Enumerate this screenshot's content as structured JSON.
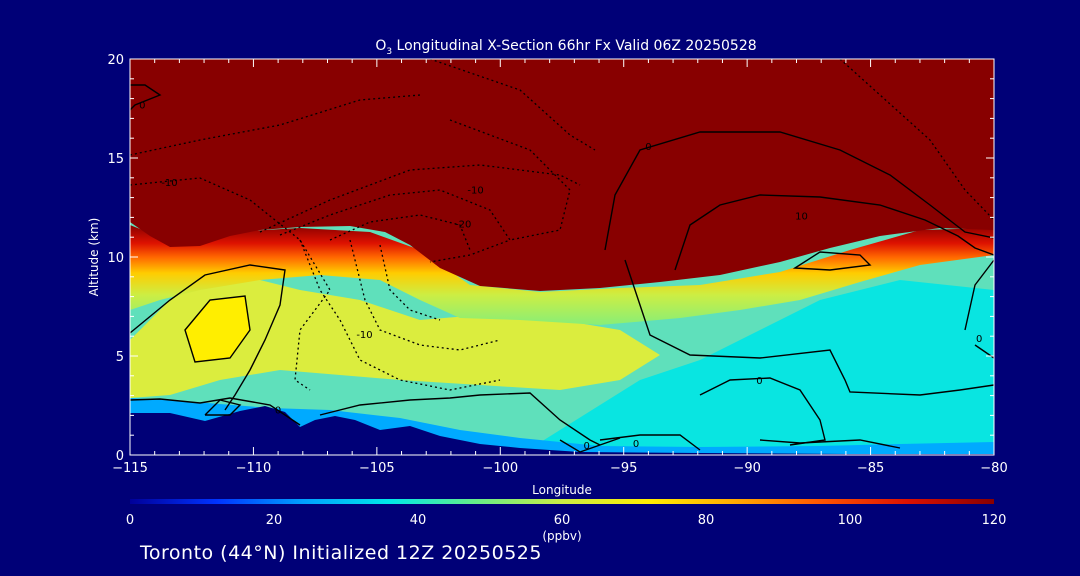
{
  "chart_data": {
    "type": "heatmap",
    "title_prefix": "O",
    "title_subscript": "3",
    "title_suffix": " Longitudinal X-Section 66hr  Fx Valid 06Z 20250528",
    "xlabel": "Longitude",
    "ylabel": "Altitude (km)",
    "xlim": [
      -115,
      -80
    ],
    "ylim": [
      0,
      20
    ],
    "x_ticks": [
      -115,
      -110,
      -105,
      -100,
      -95,
      -90,
      -85,
      -80
    ],
    "y_ticks": [
      0,
      5,
      10,
      15,
      20
    ],
    "colorbar": {
      "label": "(ppbv)",
      "range": [
        0,
        120
      ],
      "ticks": [
        0,
        20,
        40,
        60,
        80,
        100,
        120
      ],
      "colors": [
        "#000099",
        "#0033ff",
        "#00a0ff",
        "#00e8e8",
        "#66ee88",
        "#ccee44",
        "#ffee00",
        "#ffaa00",
        "#ff5500",
        "#dd1100",
        "#880000"
      ]
    },
    "contour_labels": [
      {
        "text": "0",
        "x": -109,
        "y": 2.3
      },
      {
        "text": "0",
        "x": -96.5,
        "y": 0.5
      },
      {
        "text": "0",
        "x": -94.5,
        "y": 0.6
      },
      {
        "text": "0",
        "x": -89.5,
        "y": 3.8
      },
      {
        "text": "0",
        "x": -80.6,
        "y": 5.9
      },
      {
        "text": "0",
        "x": -94,
        "y": 15.6
      },
      {
        "text": "0",
        "x": -114.5,
        "y": 17.7
      },
      {
        "text": "10",
        "x": -87.8,
        "y": 12.1
      },
      {
        "text": "-10",
        "x": -113.4,
        "y": 13.8
      },
      {
        "text": "-10",
        "x": -101,
        "y": 13.4
      },
      {
        "text": "-20",
        "x": -101.5,
        "y": 11.7
      },
      {
        "text": "-10",
        "x": -105.5,
        "y": 6.1
      }
    ]
  },
  "footer_text": "Toronto (44°N) Initialized 12Z 20250525"
}
